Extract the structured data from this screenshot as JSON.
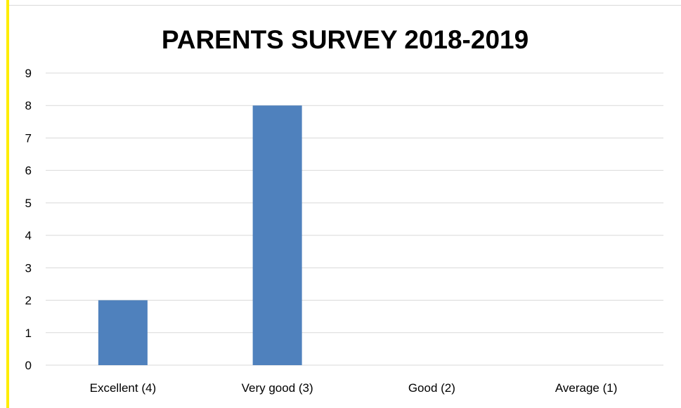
{
  "chart_data": {
    "type": "bar",
    "title": "PARENTS SURVEY 2018-2019",
    "categories": [
      "Excellent (4)",
      "Very good (3)",
      "Good (2)",
      "Average (1)"
    ],
    "values": [
      2,
      8,
      0,
      0
    ],
    "ylim": [
      0,
      9
    ],
    "yticks": [
      "0",
      "1",
      "2",
      "3",
      "4",
      "5",
      "6",
      "7",
      "8",
      "9"
    ],
    "grid": true,
    "bar_color": "#4f81bd",
    "accent_color": "#ffee00"
  }
}
